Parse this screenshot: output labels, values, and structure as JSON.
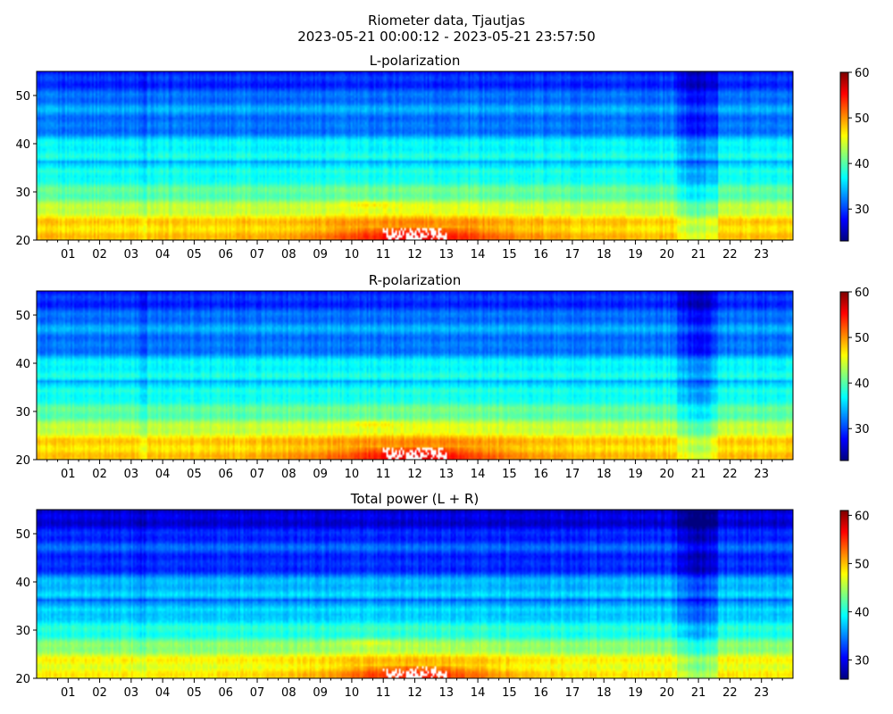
{
  "figure": {
    "title_line1": "Riometer data, Tjautjas",
    "title_line2": "2023-05-21 00:00:12 - 2023-05-21 23:57:50"
  },
  "colors": {
    "colormap": "jet",
    "stops": [
      "#00007f",
      "#0000ff",
      "#007fff",
      "#00ffff",
      "#7fff7f",
      "#ffff00",
      "#ff7f00",
      "#ff0000",
      "#7f0000"
    ],
    "saturated": "#ffffff"
  },
  "chart_data": [
    {
      "type": "heatmap",
      "title": "L-polarization",
      "xlabel": "",
      "ylabel": "",
      "x_tick_labels": [
        "01",
        "02",
        "03",
        "04",
        "05",
        "06",
        "07",
        "08",
        "09",
        "10",
        "11",
        "12",
        "13",
        "14",
        "15",
        "16",
        "17",
        "18",
        "19",
        "20",
        "21",
        "22",
        "23"
      ],
      "xlim": [
        0,
        24
      ],
      "ylim": [
        20,
        55
      ],
      "y_ticks": [
        20,
        30,
        40,
        50
      ],
      "colorbar": {
        "range": [
          23,
          60
        ],
        "ticks": [
          30,
          40,
          50,
          60
        ]
      }
    },
    {
      "type": "heatmap",
      "title": "R-polarization",
      "xlabel": "",
      "ylabel": "",
      "x_tick_labels": [
        "01",
        "02",
        "03",
        "04",
        "05",
        "06",
        "07",
        "08",
        "09",
        "10",
        "11",
        "12",
        "13",
        "14",
        "15",
        "16",
        "17",
        "18",
        "19",
        "20",
        "21",
        "22",
        "23"
      ],
      "xlim": [
        0,
        24
      ],
      "ylim": [
        20,
        55
      ],
      "y_ticks": [
        20,
        30,
        40,
        50
      ],
      "colorbar": {
        "range": [
          23,
          60
        ],
        "ticks": [
          30,
          40,
          50,
          60
        ]
      }
    },
    {
      "type": "heatmap",
      "title": "Total power (L + R)",
      "xlabel": "",
      "ylabel": "",
      "x_tick_labels": [
        "01",
        "02",
        "03",
        "04",
        "05",
        "06",
        "07",
        "08",
        "09",
        "10",
        "11",
        "12",
        "13",
        "14",
        "15",
        "16",
        "17",
        "18",
        "19",
        "20",
        "21",
        "22",
        "23"
      ],
      "xlim": [
        0,
        24
      ],
      "ylim": [
        20,
        55
      ],
      "y_ticks": [
        20,
        30,
        40,
        50
      ],
      "colorbar": {
        "range": [
          26,
          61
        ],
        "ticks": [
          30,
          40,
          50,
          60
        ]
      }
    }
  ]
}
